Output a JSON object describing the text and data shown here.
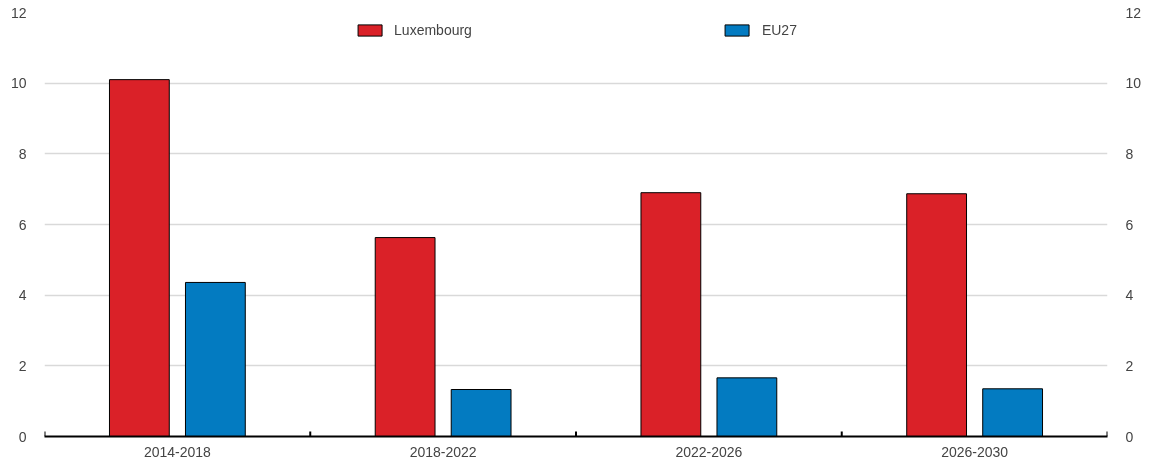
{
  "chart_data": {
    "type": "bar",
    "categories": [
      "2014-2018",
      "2018-2022",
      "2022-2026",
      "2026-2030"
    ],
    "series": [
      {
        "name": "Luxembourg",
        "color": "#da2128",
        "values": [
          10.1,
          5.63,
          6.9,
          6.87
        ]
      },
      {
        "name": "EU27",
        "color": "#037bc1",
        "values": [
          4.36,
          1.33,
          1.66,
          1.35
        ]
      }
    ],
    "ylim": [
      0,
      12
    ],
    "yticks": [
      0,
      2,
      4,
      6,
      8,
      10,
      12
    ],
    "y2lim": [
      0,
      12
    ],
    "y2ticks": [
      0,
      2,
      4,
      6,
      8,
      10,
      12
    ],
    "grid": "y",
    "legend": "top"
  }
}
